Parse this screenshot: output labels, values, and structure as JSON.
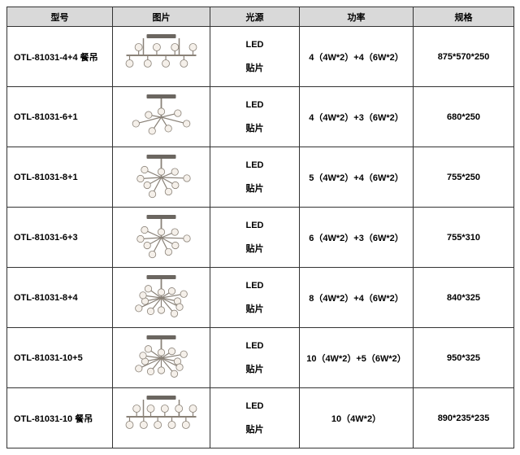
{
  "table": {
    "columns": [
      "型号",
      "图片",
      "光源",
      "功率",
      "规格"
    ],
    "light_line1": "LED",
    "light_line2": "贴片",
    "rows": [
      {
        "model": "OTL-81031-4+4 餐吊",
        "power": "4（4W*2）+4（6W*2）",
        "spec": "875*570*250",
        "bulbs": 8,
        "linear": true
      },
      {
        "model": "OTL-81031-6+1",
        "power": "4（4W*2）+3（6W*2）",
        "spec": "680*250",
        "bulbs": 7,
        "linear": false
      },
      {
        "model": "OTL-81031-8+1",
        "power": "5（4W*2）+4（6W*2）",
        "spec": "755*250",
        "bulbs": 9,
        "linear": false
      },
      {
        "model": "OTL-81031-6+3",
        "power": "6（4W*2）+3（6W*2）",
        "spec": "755*310",
        "bulbs": 9,
        "linear": false
      },
      {
        "model": "OTL-81031-8+4",
        "power": "8（4W*2）+4（6W*2）",
        "spec": "840*325",
        "bulbs": 12,
        "linear": false
      },
      {
        "model": "OTL-81031-10+5",
        "power": "10（4W*2）+5（6W*2）",
        "spec": "950*325",
        "bulbs": 15,
        "linear": false
      },
      {
        "model": "OTL-81031-10 餐吊",
        "power": "10（4W*2）",
        "spec": "890*235*235",
        "bulbs": 10,
        "linear": true
      }
    ],
    "colors": {
      "header_bg": "#d9d9d9",
      "border": "#333333",
      "bulb_fill": "#f5f0ea",
      "arm_stroke": "#8a8278",
      "canopy_fill": "#6b6660"
    }
  }
}
